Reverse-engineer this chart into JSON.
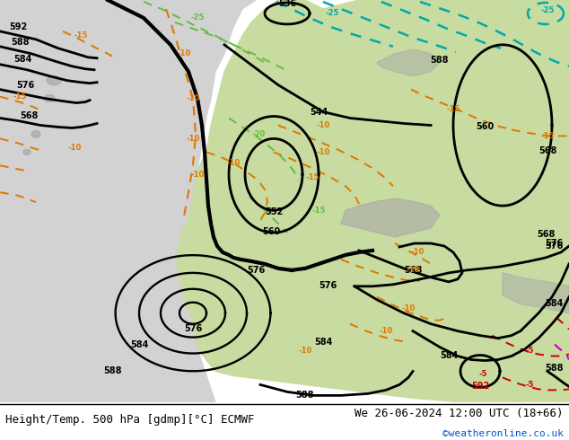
{
  "title_left": "Height/Temp. 500 hPa [gdmp][°C] ECMWF",
  "title_right": "We 26-06-2024 12:00 UTC (18+66)",
  "credit": "©weatheronline.co.uk",
  "bg_ocean": "#d2d2d2",
  "bg_land": "#c8dba0",
  "bg_mountain": "#b0b0b0",
  "bottom_bar_color": "#ffffff",
  "text_color": "#000000",
  "title_fontsize": 9,
  "credit_color": "#0055cc",
  "credit_fontsize": 8
}
